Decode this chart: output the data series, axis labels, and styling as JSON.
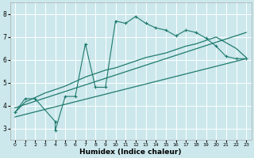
{
  "title": "",
  "xlabel": "Humidex (Indice chaleur)",
  "bg_color": "#cce8ec",
  "grid_color": "#ffffff",
  "line_color": "#1e7a6e",
  "xlim": [
    -0.5,
    23.5
  ],
  "ylim": [
    2.5,
    8.5
  ],
  "xticks": [
    0,
    1,
    2,
    3,
    4,
    5,
    6,
    7,
    8,
    9,
    10,
    11,
    12,
    13,
    14,
    15,
    16,
    17,
    18,
    19,
    20,
    21,
    22,
    23
  ],
  "yticks": [
    3,
    4,
    5,
    6,
    7,
    8
  ],
  "jagged_x": [
    0,
    1,
    2,
    4,
    4,
    5,
    6,
    7,
    8,
    9,
    10,
    11,
    12,
    13,
    14,
    15,
    16,
    17,
    18,
    19,
    20,
    21,
    22,
    23
  ],
  "jagged_y": [
    3.7,
    4.3,
    4.3,
    3.3,
    2.9,
    4.4,
    4.4,
    6.7,
    4.8,
    4.8,
    7.7,
    7.6,
    7.9,
    7.6,
    7.4,
    7.3,
    7.05,
    7.3,
    7.2,
    6.95,
    6.6,
    6.15,
    6.05,
    6.05
  ],
  "upper_line_x": [
    0,
    23
  ],
  "upper_line_y": [
    3.9,
    7.2
  ],
  "lower_line_x": [
    0,
    23
  ],
  "lower_line_y": [
    3.5,
    6.05
  ],
  "smooth_x": [
    0,
    1,
    2,
    3,
    4,
    5,
    6,
    7,
    8,
    9,
    10,
    11,
    12,
    13,
    14,
    15,
    16,
    17,
    18,
    19,
    20,
    21,
    22,
    23
  ],
  "smooth_y": [
    3.7,
    4.15,
    4.35,
    4.55,
    4.7,
    4.85,
    5.05,
    5.25,
    5.4,
    5.55,
    5.65,
    5.8,
    5.95,
    6.1,
    6.2,
    6.3,
    6.45,
    6.6,
    6.7,
    6.85,
    7.0,
    6.75,
    6.5,
    6.1
  ]
}
